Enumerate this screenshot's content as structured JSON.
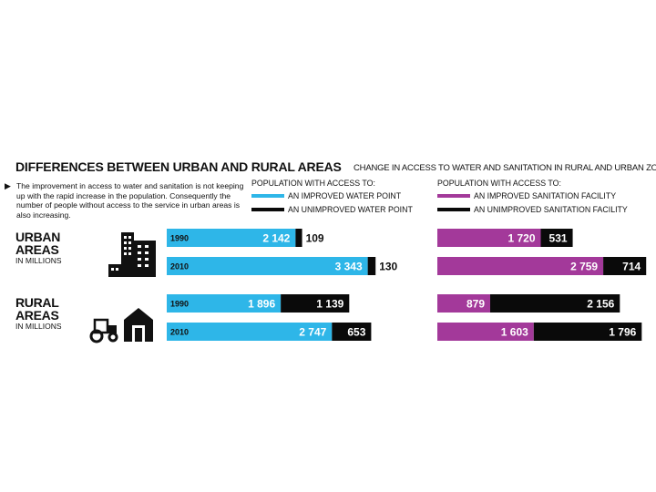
{
  "heading": {
    "title": "DIFFERENCES BETWEEN URBAN AND RURAL AREAS",
    "subtitle": "CHANGE IN ACCESS TO WATER AND SANITATION IN RURAL AND URBAN ZONES",
    "intro": "The improvement in access to water and sanitation is not keeping up with the rapid increase in the population. Consequently the number of people without access to the service in urban areas is also increasing."
  },
  "legend": {
    "water": {
      "heading": "POPULATION WITH ACCESS TO:",
      "improved": "AN IMPROVED WATER POINT",
      "unimproved": "AN UNIMPROVED WATER POINT"
    },
    "sanitation": {
      "heading": "POPULATION WITH ACCESS TO:",
      "improved": "AN IMPROVED SANITATION FACILITY",
      "unimproved": "AN UNIMPROVED SANITATION FACILITY"
    }
  },
  "areas": {
    "urban": {
      "title_line1": "URBAN",
      "title_line2": "AREAS",
      "sub": "IN MILLIONS",
      "icon": "city-buildings-icon"
    },
    "rural": {
      "title_line1": "RURAL",
      "title_line2": "AREAS",
      "sub": "IN MILLIONS",
      "icon": "tractor-barn-icon"
    }
  },
  "colors": {
    "water_improved": "#2eb6e8",
    "sanitation_improved": "#a3399a",
    "unimproved": "#0a0a0a"
  },
  "chart_data": {
    "type": "bar",
    "orientation": "horizontal-stacked",
    "unit": "millions",
    "groups": [
      {
        "name": "URBAN AREAS",
        "rows": [
          {
            "year": "1990",
            "water": {
              "improved": 2142,
              "unimproved": 109,
              "improved_label": "2 142",
              "unimproved_label": "109"
            },
            "sanitation": {
              "improved": 1720,
              "unimproved": 531,
              "improved_label": "1 720",
              "unimproved_label": "531"
            }
          },
          {
            "year": "2010",
            "water": {
              "improved": 3343,
              "unimproved": 130,
              "improved_label": "3 343",
              "unimproved_label": "130"
            },
            "sanitation": {
              "improved": 2759,
              "unimproved": 714,
              "improved_label": "2 759",
              "unimproved_label": "714"
            }
          }
        ]
      },
      {
        "name": "RURAL AREAS",
        "rows": [
          {
            "year": "1990",
            "water": {
              "improved": 1896,
              "unimproved": 1139,
              "improved_label": "1 896",
              "unimproved_label": "1 139"
            },
            "sanitation": {
              "improved": 879,
              "unimproved": 2156,
              "improved_label": "879",
              "unimproved_label": "2 156"
            }
          },
          {
            "year": "2010",
            "water": {
              "improved": 2747,
              "unimproved": 653,
              "improved_label": "2 747",
              "unimproved_label": "653"
            },
            "sanitation": {
              "improved": 1603,
              "unimproved": 1796,
              "improved_label": "1 603",
              "unimproved_label": "1 796"
            }
          }
        ]
      }
    ]
  }
}
